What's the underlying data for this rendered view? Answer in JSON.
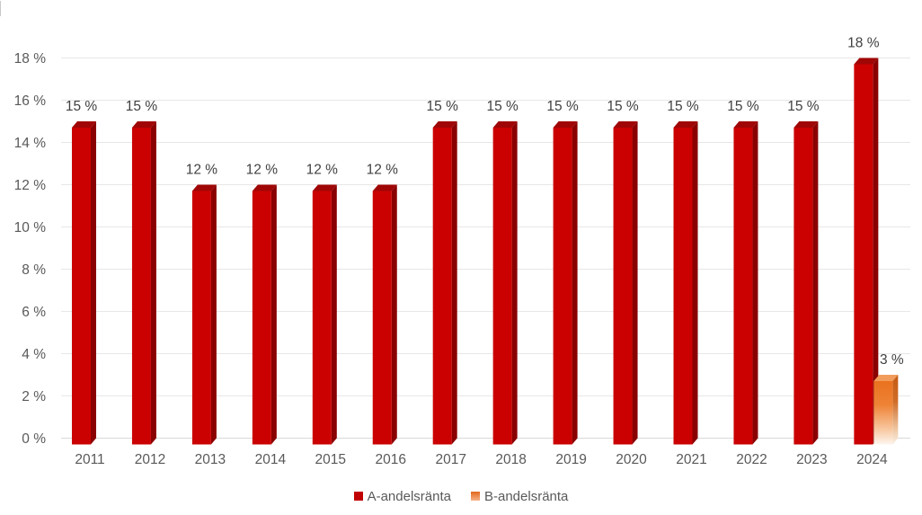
{
  "chart_data": {
    "type": "bar",
    "chart_style": "3d-clustered-column",
    "title": "",
    "xlabel": "",
    "ylabel": "",
    "categories": [
      "2011",
      "2012",
      "2013",
      "2014",
      "2015",
      "2016",
      "2017",
      "2018",
      "2019",
      "2020",
      "2021",
      "2022",
      "2023",
      "2024"
    ],
    "series": [
      {
        "name": "A-andelsränta",
        "values": [
          15,
          15,
          12,
          12,
          12,
          12,
          15,
          15,
          15,
          15,
          15,
          15,
          15,
          18
        ],
        "labels": [
          "15 %",
          "15 %",
          "12 %",
          "12 %",
          "12 %",
          "12 %",
          "15 %",
          "15 %",
          "15 %",
          "15 %",
          "15 %",
          "15 %",
          "15 %",
          "18 %"
        ],
        "colors": {
          "front": "#CB0101",
          "side": "#8A0101",
          "top": "#A00606"
        }
      },
      {
        "name": "B-andelsränta",
        "values": [
          null,
          null,
          null,
          null,
          null,
          null,
          null,
          null,
          null,
          null,
          null,
          null,
          null,
          3
        ],
        "labels": [
          null,
          null,
          null,
          null,
          null,
          null,
          null,
          null,
          null,
          null,
          null,
          null,
          null,
          "3 %"
        ],
        "gradient_fade_to_bottom": true,
        "colors": {
          "front_top": "#E9711F",
          "front_mid": "#EE8336",
          "front_low": "#F9CFAC",
          "front_bottom": "#FDF6EF",
          "side_top": "#C55A11",
          "side_mid": "#CF6C28",
          "side_low": "#F0CBA8",
          "side_bottom": "#FAF0E6",
          "top": "#F19C5B"
        }
      }
    ],
    "yticks": {
      "values": [
        0,
        2,
        4,
        6,
        8,
        10,
        12,
        14,
        16,
        18
      ],
      "labels": [
        "0 %",
        "2 %",
        "4 %",
        "6 %",
        "8 %",
        "10 %",
        "12 %",
        "14 %",
        "16 %",
        "18 %"
      ]
    },
    "ylim": [
      0,
      18
    ],
    "grid": true,
    "legend": {
      "position": "bottom",
      "items": [
        {
          "label": "A-andelsränta",
          "swatch_top": "#C00000",
          "swatch_bottom": "#C00000"
        },
        {
          "label": "B-andelsränta",
          "swatch_top": "#E2681B",
          "swatch_bottom": "#F6B388"
        }
      ]
    }
  },
  "colors": {
    "background": "#FFFFFF",
    "gridline": "#E7E7E7",
    "baseline": "#D9D9D9",
    "axis_text": "#595959",
    "data_label_text": "#404040",
    "edge_artifact": "#C8C8C8"
  }
}
